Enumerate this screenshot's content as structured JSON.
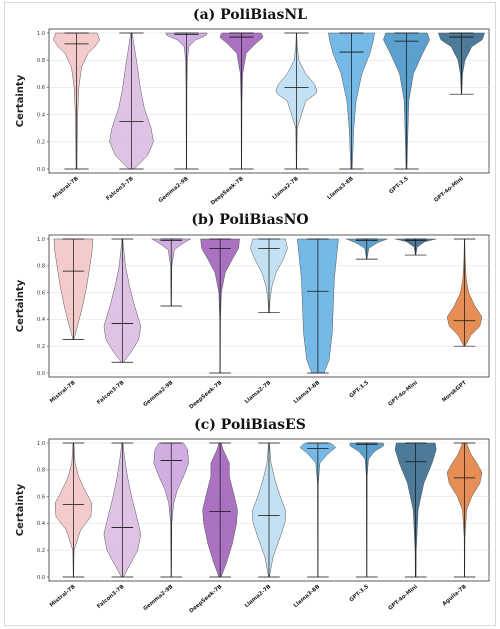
{
  "chart_data": [
    {
      "type": "violin",
      "title": "(a) PoliBiasNL",
      "ylabel": "Certainty",
      "ylim": [
        0.0,
        1.0
      ],
      "yticks": [
        "0.0",
        "0.2",
        "0.4",
        "0.6",
        "0.8",
        "1.0"
      ],
      "grid": true,
      "series": [
        {
          "label": "Mistral-7B",
          "median": 0.92,
          "min": 0.0,
          "max": 1.0,
          "color": "#f2c2c2",
          "profile": [
            [
              0.0,
              0.02
            ],
            [
              0.2,
              0.03
            ],
            [
              0.4,
              0.05
            ],
            [
              0.6,
              0.1
            ],
            [
              0.75,
              0.22
            ],
            [
              0.85,
              0.5
            ],
            [
              0.9,
              0.8
            ],
            [
              0.95,
              1.0
            ],
            [
              1.0,
              0.9
            ]
          ]
        },
        {
          "label": "Falcon3-7B",
          "median": 0.35,
          "min": 0.0,
          "max": 1.0,
          "color": "#d9b8e0",
          "profile": [
            [
              0.0,
              0.12
            ],
            [
              0.1,
              0.7
            ],
            [
              0.2,
              0.95
            ],
            [
              0.3,
              0.85
            ],
            [
              0.45,
              0.55
            ],
            [
              0.6,
              0.38
            ],
            [
              0.75,
              0.26
            ],
            [
              0.9,
              0.12
            ],
            [
              1.0,
              0.03
            ]
          ]
        },
        {
          "label": "Gemma2-9B",
          "median": 0.99,
          "min": 0.0,
          "max": 1.0,
          "color": "#c9a0dc",
          "profile": [
            [
              0.0,
              0.01
            ],
            [
              0.6,
              0.02
            ],
            [
              0.8,
              0.04
            ],
            [
              0.9,
              0.1
            ],
            [
              0.95,
              0.4
            ],
            [
              0.98,
              0.85
            ],
            [
              1.0,
              0.9
            ]
          ]
        },
        {
          "label": "DeepSeek-7B",
          "median": 0.97,
          "min": 0.0,
          "max": 1.0,
          "color": "#9b59b6",
          "profile": [
            [
              0.0,
              0.01
            ],
            [
              0.5,
              0.02
            ],
            [
              0.7,
              0.05
            ],
            [
              0.85,
              0.2
            ],
            [
              0.92,
              0.6
            ],
            [
              0.97,
              0.95
            ],
            [
              1.0,
              0.85
            ]
          ]
        },
        {
          "label": "Llama2-7B",
          "median": 0.6,
          "min": 0.0,
          "max": 1.0,
          "color": "#b8dcf0",
          "profile": [
            [
              0.0,
              0.01
            ],
            [
              0.3,
              0.03
            ],
            [
              0.5,
              0.4
            ],
            [
              0.56,
              0.9
            ],
            [
              0.62,
              0.8
            ],
            [
              0.7,
              0.4
            ],
            [
              0.8,
              0.1
            ],
            [
              0.9,
              0.03
            ],
            [
              1.0,
              0.01
            ]
          ]
        },
        {
          "label": "Llama3-8B",
          "median": 0.86,
          "min": 0.0,
          "max": 1.0,
          "color": "#5dade2",
          "profile": [
            [
              0.0,
              0.03
            ],
            [
              0.3,
              0.1
            ],
            [
              0.5,
              0.2
            ],
            [
              0.7,
              0.45
            ],
            [
              0.85,
              0.8
            ],
            [
              0.95,
              0.95
            ],
            [
              1.0,
              1.0
            ]
          ]
        },
        {
          "label": "GPT-3.5",
          "median": 0.94,
          "min": 0.0,
          "max": 1.0,
          "color": "#3f8fc4",
          "profile": [
            [
              0.0,
              0.02
            ],
            [
              0.2,
              0.05
            ],
            [
              0.5,
              0.1
            ],
            [
              0.7,
              0.3
            ],
            [
              0.85,
              0.7
            ],
            [
              0.95,
              1.0
            ],
            [
              1.0,
              0.9
            ]
          ]
        },
        {
          "label": "GPT-4o-Mini",
          "median": 0.97,
          "min": 0.55,
          "max": 1.0,
          "color": "#2e6386",
          "profile": [
            [
              0.55,
              0.01
            ],
            [
              0.7,
              0.05
            ],
            [
              0.8,
              0.15
            ],
            [
              0.9,
              0.45
            ],
            [
              0.95,
              0.9
            ],
            [
              1.0,
              1.0
            ]
          ]
        }
      ]
    },
    {
      "type": "violin",
      "title": "(b) PoliBiasNO",
      "ylabel": "Certainty",
      "ylim": [
        0.0,
        1.0
      ],
      "yticks": [
        "0.0",
        "0.2",
        "0.4",
        "0.6",
        "0.8",
        "1.0"
      ],
      "grid": true,
      "series": [
        {
          "label": "Mistral-7B",
          "median": 0.76,
          "min": 0.25,
          "max": 1.0,
          "color": "#f2c2c2",
          "profile": [
            [
              0.25,
              0.02
            ],
            [
              0.35,
              0.2
            ],
            [
              0.5,
              0.45
            ],
            [
              0.65,
              0.65
            ],
            [
              0.8,
              0.8
            ],
            [
              0.9,
              0.9
            ],
            [
              1.0,
              0.95
            ]
          ]
        },
        {
          "label": "Falcon3-7B",
          "median": 0.37,
          "min": 0.08,
          "max": 1.0,
          "color": "#d9b8e0",
          "profile": [
            [
              0.08,
              0.05
            ],
            [
              0.15,
              0.4
            ],
            [
              0.25,
              0.8
            ],
            [
              0.35,
              0.9
            ],
            [
              0.5,
              0.6
            ],
            [
              0.65,
              0.35
            ],
            [
              0.8,
              0.15
            ],
            [
              0.95,
              0.05
            ],
            [
              1.0,
              0.02
            ]
          ]
        },
        {
          "label": "Gemma2-9B",
          "median": 0.99,
          "min": 0.5,
          "max": 1.0,
          "color": "#c9a0dc",
          "profile": [
            [
              0.5,
              0.01
            ],
            [
              0.8,
              0.03
            ],
            [
              0.92,
              0.15
            ],
            [
              0.97,
              0.6
            ],
            [
              1.0,
              0.95
            ]
          ]
        },
        {
          "label": "DeepSeek-7B",
          "median": 0.93,
          "min": 0.0,
          "max": 1.0,
          "color": "#9b59b6",
          "profile": [
            [
              0.0,
              0.01
            ],
            [
              0.4,
              0.02
            ],
            [
              0.6,
              0.06
            ],
            [
              0.75,
              0.25
            ],
            [
              0.85,
              0.6
            ],
            [
              0.93,
              0.9
            ],
            [
              1.0,
              0.95
            ]
          ]
        },
        {
          "label": "Llama2-7B",
          "median": 0.93,
          "min": 0.45,
          "max": 1.0,
          "color": "#b8dcf0",
          "profile": [
            [
              0.45,
              0.02
            ],
            [
              0.55,
              0.05
            ],
            [
              0.65,
              0.15
            ],
            [
              0.75,
              0.35
            ],
            [
              0.85,
              0.7
            ],
            [
              0.93,
              0.9
            ],
            [
              1.0,
              0.8
            ]
          ]
        },
        {
          "label": "Llama3-8B",
          "median": 0.61,
          "min": 0.0,
          "max": 1.0,
          "color": "#5dade2",
          "profile": [
            [
              0.0,
              0.3
            ],
            [
              0.1,
              0.55
            ],
            [
              0.3,
              0.7
            ],
            [
              0.5,
              0.75
            ],
            [
              0.7,
              0.8
            ],
            [
              0.85,
              0.9
            ],
            [
              1.0,
              1.0
            ]
          ]
        },
        {
          "label": "GPT-3.5",
          "median": 0.99,
          "min": 0.85,
          "max": 1.0,
          "color": "#3f8fc4",
          "profile": [
            [
              0.85,
              0.01
            ],
            [
              0.93,
              0.1
            ],
            [
              0.97,
              0.5
            ],
            [
              1.0,
              1.0
            ]
          ]
        },
        {
          "label": "GPT-4o-Mini",
          "median": 0.99,
          "min": 0.88,
          "max": 1.0,
          "color": "#2e6386",
          "profile": [
            [
              0.88,
              0.01
            ],
            [
              0.94,
              0.08
            ],
            [
              0.98,
              0.45
            ],
            [
              1.0,
              1.0
            ]
          ]
        },
        {
          "label": "NorskGPT",
          "median": 0.39,
          "min": 0.2,
          "max": 1.0,
          "color": "#e07b39",
          "profile": [
            [
              0.2,
              0.03
            ],
            [
              0.28,
              0.3
            ],
            [
              0.35,
              0.75
            ],
            [
              0.42,
              0.85
            ],
            [
              0.5,
              0.5
            ],
            [
              0.6,
              0.2
            ],
            [
              0.7,
              0.08
            ],
            [
              0.85,
              0.03
            ],
            [
              1.0,
              0.01
            ]
          ]
        }
      ]
    },
    {
      "type": "violin",
      "title": "(c) PoliBiasES",
      "ylabel": "Certainty",
      "ylim": [
        0.0,
        1.0
      ],
      "yticks": [
        "0.0",
        "0.2",
        "0.4",
        "0.6",
        "0.8",
        "1.0"
      ],
      "grid": true,
      "series": [
        {
          "label": "Mistral-7B",
          "median": 0.54,
          "min": 0.0,
          "max": 1.0,
          "color": "#f2c2c2",
          "profile": [
            [
              0.0,
              0.01
            ],
            [
              0.2,
              0.03
            ],
            [
              0.35,
              0.35
            ],
            [
              0.45,
              0.85
            ],
            [
              0.55,
              0.9
            ],
            [
              0.65,
              0.55
            ],
            [
              0.75,
              0.25
            ],
            [
              0.85,
              0.08
            ],
            [
              1.0,
              0.02
            ]
          ]
        },
        {
          "label": "Falcon3-7B",
          "median": 0.37,
          "min": 0.0,
          "max": 1.0,
          "color": "#d9b8e0",
          "profile": [
            [
              0.0,
              0.05
            ],
            [
              0.1,
              0.4
            ],
            [
              0.2,
              0.75
            ],
            [
              0.32,
              0.9
            ],
            [
              0.45,
              0.7
            ],
            [
              0.6,
              0.45
            ],
            [
              0.75,
              0.25
            ],
            [
              0.9,
              0.1
            ],
            [
              1.0,
              0.03
            ]
          ]
        },
        {
          "label": "Gemma2-9B",
          "median": 0.87,
          "min": 0.0,
          "max": 1.0,
          "color": "#c9a0dc",
          "profile": [
            [
              0.0,
              0.01
            ],
            [
              0.4,
              0.03
            ],
            [
              0.55,
              0.12
            ],
            [
              0.65,
              0.3
            ],
            [
              0.75,
              0.6
            ],
            [
              0.85,
              0.85
            ],
            [
              0.95,
              0.8
            ],
            [
              1.0,
              0.6
            ]
          ]
        },
        {
          "label": "DeepSeek-7B",
          "median": 0.49,
          "min": 0.0,
          "max": 1.0,
          "color": "#9b59b6",
          "profile": [
            [
              0.0,
              0.05
            ],
            [
              0.1,
              0.3
            ],
            [
              0.25,
              0.6
            ],
            [
              0.4,
              0.8
            ],
            [
              0.5,
              0.85
            ],
            [
              0.6,
              0.7
            ],
            [
              0.75,
              0.45
            ],
            [
              0.85,
              0.45
            ],
            [
              0.95,
              0.15
            ],
            [
              1.0,
              0.05
            ]
          ]
        },
        {
          "label": "Llama2-7B",
          "median": 0.46,
          "min": 0.0,
          "max": 1.0,
          "color": "#b8dcf0",
          "profile": [
            [
              0.0,
              0.02
            ],
            [
              0.15,
              0.2
            ],
            [
              0.3,
              0.55
            ],
            [
              0.42,
              0.8
            ],
            [
              0.5,
              0.8
            ],
            [
              0.6,
              0.55
            ],
            [
              0.72,
              0.3
            ],
            [
              0.85,
              0.1
            ],
            [
              1.0,
              0.02
            ]
          ]
        },
        {
          "label": "Llama3-8B",
          "median": 0.96,
          "min": 0.0,
          "max": 1.0,
          "color": "#5dade2",
          "profile": [
            [
              0.0,
              0.01
            ],
            [
              0.7,
              0.02
            ],
            [
              0.85,
              0.1
            ],
            [
              0.92,
              0.5
            ],
            [
              0.97,
              0.9
            ],
            [
              1.0,
              0.6
            ]
          ]
        },
        {
          "label": "GPT-3.5",
          "median": 0.99,
          "min": 0.0,
          "max": 1.0,
          "color": "#3f8fc4",
          "profile": [
            [
              0.0,
              0.01
            ],
            [
              0.75,
              0.02
            ],
            [
              0.88,
              0.08
            ],
            [
              0.94,
              0.4
            ],
            [
              0.98,
              0.85
            ],
            [
              1.0,
              0.8
            ]
          ]
        },
        {
          "label": "GPT-4o-Mini",
          "median": 0.86,
          "min": 0.0,
          "max": 1.0,
          "color": "#2e6386",
          "profile": [
            [
              0.0,
              0.02
            ],
            [
              0.2,
              0.03
            ],
            [
              0.5,
              0.12
            ],
            [
              0.7,
              0.4
            ],
            [
              0.85,
              0.8
            ],
            [
              0.95,
              1.0
            ],
            [
              1.0,
              0.95
            ]
          ]
        },
        {
          "label": "Aguila-7B",
          "median": 0.74,
          "min": 0.0,
          "max": 1.0,
          "color": "#e07b39",
          "profile": [
            [
              0.0,
              0.01
            ],
            [
              0.3,
              0.02
            ],
            [
              0.5,
              0.1
            ],
            [
              0.6,
              0.35
            ],
            [
              0.7,
              0.75
            ],
            [
              0.78,
              0.85
            ],
            [
              0.85,
              0.6
            ],
            [
              0.92,
              0.3
            ],
            [
              1.0,
              0.1
            ]
          ]
        }
      ]
    }
  ]
}
